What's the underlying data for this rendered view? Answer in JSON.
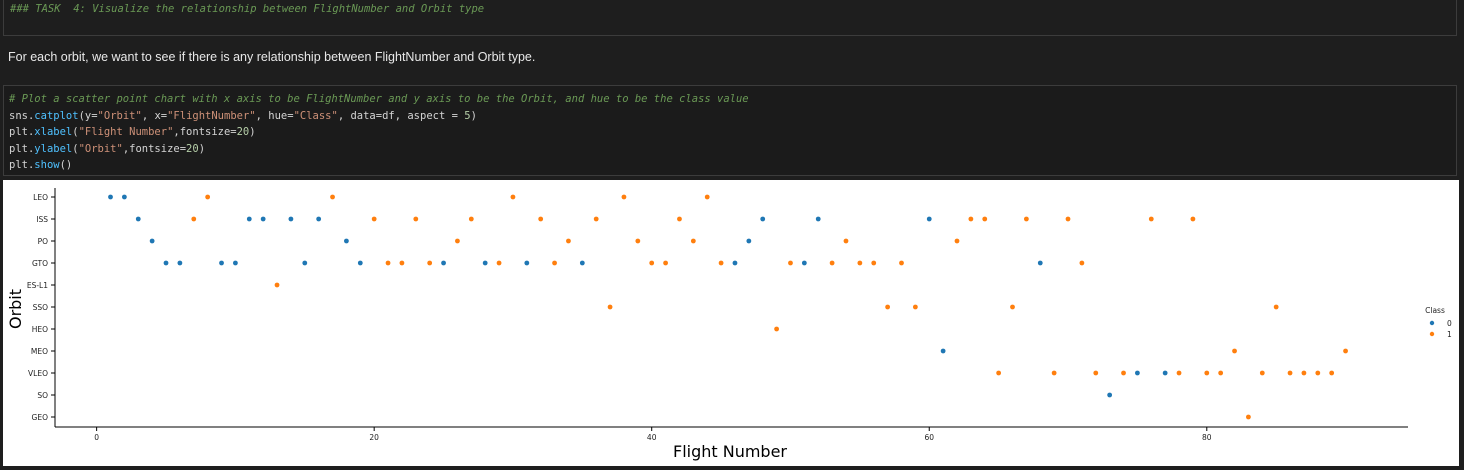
{
  "markdown_cell": {
    "text": "### TASK  4: Visualize the relationship between FlightNumber and Orbit type"
  },
  "prose": {
    "text": "For each orbit, we want to see if there is any relationship between FlightNumber and Orbit type."
  },
  "code_cell": {
    "comment": "# Plot a scatter point chart with x axis to be FlightNumber and y axis to be the Orbit, and hue to be the class value",
    "line1": {
      "obj": "sns",
      "fn": "catplot",
      "a1": "y=",
      "s1": "\"Orbit\"",
      "a2": ", x=",
      "s2": "\"FlightNumber\"",
      "a3": ", hue=",
      "s3": "\"Class\"",
      "a4": ", data=df, aspect = ",
      "n1": "5",
      "a5": ")"
    },
    "line2": {
      "obj": "plt",
      "fn": "xlabel",
      "s1": "\"Flight Number\"",
      "a1": ",fontsize=",
      "n1": "20",
      "a2": ")"
    },
    "line3": {
      "obj": "plt",
      "fn": "ylabel",
      "s1": "\"Orbit\"",
      "a1": ",fontsize=",
      "n1": "20",
      "a2": ")"
    },
    "line4": {
      "obj": "plt",
      "fn": "show",
      "a1": "()"
    }
  },
  "chart_data": {
    "type": "scatter",
    "xlabel": "Flight Number",
    "ylabel": "Orbit",
    "categories": [
      "LEO",
      "ISS",
      "PO",
      "GTO",
      "ES-L1",
      "SSO",
      "HEO",
      "MEO",
      "VLEO",
      "SO",
      "GEO"
    ],
    "xlim": [
      -3,
      94.5
    ],
    "xticks": [
      0,
      20,
      40,
      60,
      80
    ],
    "legend": {
      "title": "Class",
      "placement": "right"
    },
    "series": [
      {
        "name": "0",
        "color": "#1f77b4",
        "points": [
          [
            1,
            "LEO"
          ],
          [
            2,
            "LEO"
          ],
          [
            3,
            "ISS"
          ],
          [
            4,
            "PO"
          ],
          [
            5,
            "GTO"
          ],
          [
            6,
            "GTO"
          ],
          [
            9,
            "GTO"
          ],
          [
            10,
            "GTO"
          ],
          [
            11,
            "ISS"
          ],
          [
            12,
            "ISS"
          ],
          [
            14,
            "ISS"
          ],
          [
            15,
            "GTO"
          ],
          [
            16,
            "ISS"
          ],
          [
            18,
            "PO"
          ],
          [
            19,
            "GTO"
          ],
          [
            25,
            "GTO"
          ],
          [
            28,
            "GTO"
          ],
          [
            31,
            "GTO"
          ],
          [
            35,
            "GTO"
          ],
          [
            46,
            "GTO"
          ],
          [
            47,
            "PO"
          ],
          [
            48,
            "ISS"
          ],
          [
            51,
            "GTO"
          ],
          [
            52,
            "ISS"
          ],
          [
            60,
            "ISS"
          ],
          [
            61,
            "MEO"
          ],
          [
            68,
            "GTO"
          ],
          [
            73,
            "SO"
          ],
          [
            75,
            "VLEO"
          ],
          [
            77,
            "VLEO"
          ]
        ]
      },
      {
        "name": "1",
        "color": "#ff7f0e",
        "points": [
          [
            7,
            "ISS"
          ],
          [
            8,
            "LEO"
          ],
          [
            13,
            "ES-L1"
          ],
          [
            17,
            "LEO"
          ],
          [
            20,
            "ISS"
          ],
          [
            21,
            "GTO"
          ],
          [
            22,
            "GTO"
          ],
          [
            23,
            "ISS"
          ],
          [
            24,
            "GTO"
          ],
          [
            26,
            "PO"
          ],
          [
            27,
            "ISS"
          ],
          [
            29,
            "GTO"
          ],
          [
            30,
            "LEO"
          ],
          [
            32,
            "ISS"
          ],
          [
            33,
            "GTO"
          ],
          [
            34,
            "PO"
          ],
          [
            36,
            "ISS"
          ],
          [
            37,
            "SSO"
          ],
          [
            38,
            "LEO"
          ],
          [
            39,
            "PO"
          ],
          [
            40,
            "GTO"
          ],
          [
            41,
            "GTO"
          ],
          [
            42,
            "ISS"
          ],
          [
            43,
            "PO"
          ],
          [
            44,
            "LEO"
          ],
          [
            45,
            "GTO"
          ],
          [
            49,
            "HEO"
          ],
          [
            50,
            "GTO"
          ],
          [
            53,
            "GTO"
          ],
          [
            54,
            "PO"
          ],
          [
            55,
            "GTO"
          ],
          [
            56,
            "GTO"
          ],
          [
            57,
            "SSO"
          ],
          [
            58,
            "GTO"
          ],
          [
            59,
            "SSO"
          ],
          [
            62,
            "PO"
          ],
          [
            63,
            "ISS"
          ],
          [
            64,
            "ISS"
          ],
          [
            65,
            "VLEO"
          ],
          [
            66,
            "SSO"
          ],
          [
            67,
            "ISS"
          ],
          [
            69,
            "VLEO"
          ],
          [
            70,
            "ISS"
          ],
          [
            71,
            "GTO"
          ],
          [
            72,
            "VLEO"
          ],
          [
            74,
            "VLEO"
          ],
          [
            76,
            "ISS"
          ],
          [
            78,
            "VLEO"
          ],
          [
            79,
            "ISS"
          ],
          [
            80,
            "VLEO"
          ],
          [
            81,
            "VLEO"
          ],
          [
            82,
            "MEO"
          ],
          [
            83,
            "GEO"
          ],
          [
            84,
            "VLEO"
          ],
          [
            85,
            "SSO"
          ],
          [
            86,
            "VLEO"
          ],
          [
            87,
            "VLEO"
          ],
          [
            88,
            "VLEO"
          ],
          [
            89,
            "VLEO"
          ],
          [
            90,
            "MEO"
          ]
        ]
      }
    ]
  }
}
